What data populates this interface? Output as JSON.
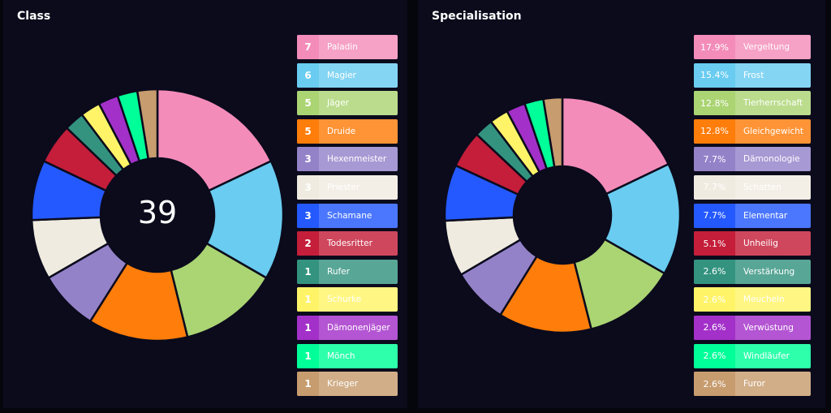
{
  "chart_data": [
    {
      "type": "pie",
      "title": "Class",
      "center_label": "39",
      "categories": [
        "Paladin",
        "Magier",
        "Jäger",
        "Druide",
        "Hexenmeister",
        "Priester",
        "Schamane",
        "Todesritter",
        "Rufer",
        "Schurke",
        "Dämonenjäger",
        "Mönch",
        "Krieger"
      ],
      "values": [
        7,
        6,
        5,
        5,
        3,
        3,
        3,
        2,
        1,
        1,
        1,
        1,
        1
      ],
      "value_labels": [
        "7",
        "6",
        "5",
        "5",
        "3",
        "3",
        "3",
        "2",
        "1",
        "1",
        "1",
        "1",
        "1"
      ],
      "colors": [
        "#f48cba",
        "#69ccf0",
        "#abd473",
        "#ff7d0a",
        "#9482c9",
        "#f0ebe0",
        "#2459ff",
        "#c41e3a",
        "#33937f",
        "#fff468",
        "#a330c9",
        "#00ff98",
        "#c79c6e"
      ]
    },
    {
      "type": "pie",
      "title": "Specialisation",
      "categories": [
        "Vergeltung",
        "Frost",
        "Tierherrschaft",
        "Gleichgewicht",
        "Dämonologie",
        "Schatten",
        "Elementar",
        "Unheilig",
        "Verstärkung",
        "Meucheln",
        "Verwüstung",
        "Windläufer",
        "Furor"
      ],
      "values": [
        17.9,
        15.4,
        12.8,
        12.8,
        7.7,
        7.7,
        7.7,
        5.1,
        2.6,
        2.6,
        2.6,
        2.6,
        2.6
      ],
      "value_labels": [
        "17.9%",
        "15.4%",
        "12.8%",
        "12.8%",
        "7.7%",
        "7.7%",
        "7.7%",
        "5.1%",
        "2.6%",
        "2.6%",
        "2.6%",
        "2.6%",
        "2.6%"
      ],
      "colors": [
        "#f48cba",
        "#69ccf0",
        "#abd473",
        "#ff7d0a",
        "#9482c9",
        "#f0ebe0",
        "#2459ff",
        "#c41e3a",
        "#33937f",
        "#fff468",
        "#a330c9",
        "#00ff98",
        "#c79c6e"
      ]
    }
  ]
}
